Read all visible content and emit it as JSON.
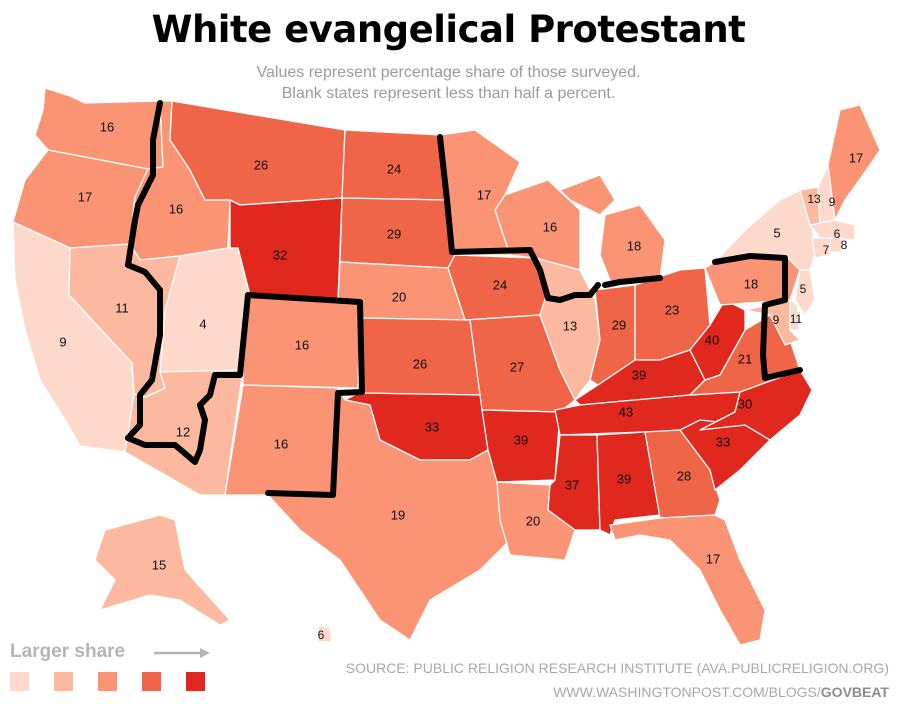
{
  "title": "White evangelical Protestant",
  "subtitle_line1": "Values represent percentage share of those surveyed.",
  "subtitle_line2": "Blank states represent less than half a percent.",
  "legend": {
    "label": "Larger share",
    "colors": [
      "#fdd9cc",
      "#fcb99f",
      "#fa9474",
      "#f06547",
      "#e0281e"
    ]
  },
  "source": "SOURCE: PUBLIC RELIGION RESEARCH INSTITUTE (AVA.PUBLICRELIGION.ORG)",
  "credit_prefix": "WWW.WASHINGTONPOST.COM/BLOGS/",
  "credit_brand": "GOVBEAT",
  "states": {
    "WA": "16",
    "OR": "17",
    "CA": "9",
    "ID": "16",
    "NV": "11",
    "UT": "4",
    "AZ": "12",
    "MT": "26",
    "WY": "32",
    "CO": "16",
    "NM": "16",
    "ND": "24",
    "SD": "29",
    "NE": "20",
    "KS": "26",
    "OK": "33",
    "TX": "19",
    "MN": "17",
    "IA": "24",
    "MO": "27",
    "AR": "39",
    "LA": "20",
    "WI": "16",
    "IL": "13",
    "MI": "18",
    "IN": "29",
    "OH": "23",
    "KY": "39",
    "TN": "43",
    "MS": "37",
    "AL": "39",
    "GA": "28",
    "FL": "17",
    "SC": "33",
    "NC": "30",
    "VA": "21",
    "WV": "40",
    "PA": "18",
    "NY": "5",
    "VT": "13",
    "NH": "9",
    "ME": "17",
    "MA": "6",
    "RI": "8",
    "CT": "7",
    "NJ": "5",
    "DE": "9",
    "MD": "11",
    "AK": "15",
    "HI": "6"
  },
  "state_colors": {
    "WA": "#fa9474",
    "OR": "#fa9474",
    "CA": "#fdd9cc",
    "ID": "#fa9474",
    "NV": "#fcb99f",
    "UT": "#fdd9cc",
    "AZ": "#fcb99f",
    "MT": "#f06547",
    "WY": "#e0281e",
    "CO": "#fa9474",
    "NM": "#fa9474",
    "ND": "#f06547",
    "SD": "#f06547",
    "NE": "#fa9474",
    "KS": "#f06547",
    "OK": "#e0281e",
    "TX": "#fa9474",
    "MN": "#fa9474",
    "IA": "#f06547",
    "MO": "#f06547",
    "AR": "#e0281e",
    "LA": "#fa9474",
    "WI": "#fa9474",
    "IL": "#fcb99f",
    "MI": "#fa9474",
    "IN": "#f06547",
    "OH": "#f06547",
    "KY": "#e0281e",
    "TN": "#e0281e",
    "MS": "#e0281e",
    "AL": "#e0281e",
    "GA": "#f06547",
    "FL": "#fa9474",
    "SC": "#e0281e",
    "NC": "#e0281e",
    "VA": "#f06547",
    "WV": "#e0281e",
    "PA": "#fa9474",
    "NY": "#fdd9cc",
    "VT": "#fcb99f",
    "NH": "#fdd9cc",
    "ME": "#fa9474",
    "MA": "#fdd9cc",
    "RI": "#fdd9cc",
    "CT": "#fdd9cc",
    "NJ": "#fdd9cc",
    "DE": "#fdd9cc",
    "MD": "#fcb99f",
    "AK": "#fcb99f",
    "HI": "#fdd9cc"
  }
}
